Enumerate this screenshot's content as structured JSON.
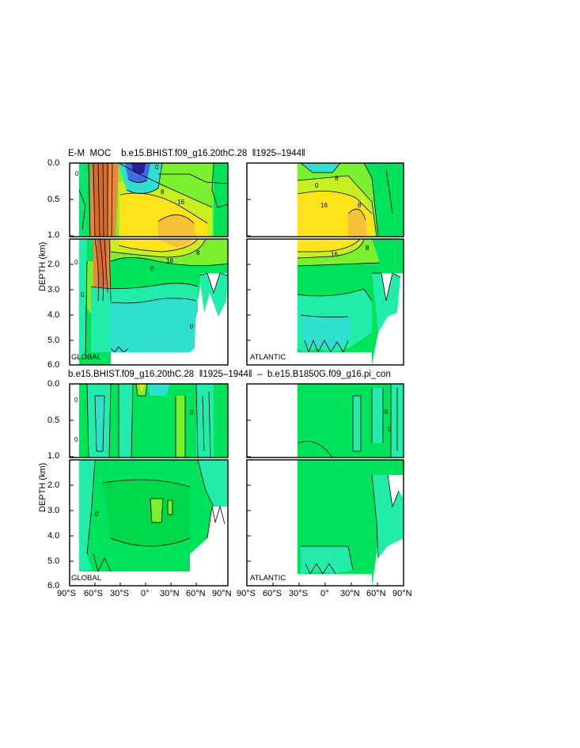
{
  "title_top": "E-M  MOC    b.e15.BHIST.f09_g16.20thC.28  ‖1925–1944‖",
  "title_bottom": "b.e15.BHIST.f09_g16.20thC.28  ‖1925–1944‖  –  b.e15.B1850G.f09_g16.pi_con",
  "ylabel": "DEPTH (km)",
  "region_labels": {
    "global": "GLOBAL",
    "atlantic": "ATLANTIC"
  },
  "colors": {
    "deep_blue": "#2a1f9a",
    "blue": "#3f6de0",
    "cyan": "#2fe0d0",
    "aqua": "#22ecaa",
    "green": "#00e35a",
    "lime": "#7af02e",
    "yellow_green": "#c8f020",
    "yellow": "#ffe41a",
    "gold": "#f6c23a",
    "orange": "#e98a3a",
    "dark_orange": "#d86a2a"
  },
  "chart_data": [
    {
      "name": "top-global",
      "type": "heatmap",
      "region": "GLOBAL",
      "x_ticks": [
        "90°S",
        "60°S",
        "30°S",
        "0°",
        "30°N",
        "60°N",
        "90°N"
      ],
      "x_range": [
        -90,
        90
      ],
      "y_ticks_upper": [
        "0.0",
        "0.5",
        "1.0"
      ],
      "y_ticks_lower": [
        "2.0",
        "3.0",
        "4.0",
        "5.0",
        "6.0"
      ],
      "y_range_km": [
        0,
        6
      ],
      "contour_labels": [
        "0",
        "8",
        "16",
        "0",
        "16",
        "8",
        "0",
        "16",
        "8",
        "0",
        "0",
        "0",
        "0"
      ]
    },
    {
      "name": "top-atlantic",
      "type": "heatmap",
      "region": "ATLANTIC",
      "x_ticks": [
        "90°S",
        "60°S",
        "30°S",
        "0°",
        "30°N",
        "60°N",
        "90°N"
      ],
      "x_range": [
        -90,
        90
      ],
      "y_range_km": [
        0,
        6
      ],
      "contour_labels": [
        "0",
        "8",
        "16",
        "8",
        "16",
        "8",
        "0",
        "0",
        "0"
      ]
    },
    {
      "name": "bottom-global",
      "type": "heatmap",
      "region": "GLOBAL",
      "x_ticks": [
        "90°S",
        "60°S",
        "30°S",
        "0°",
        "30°N",
        "60°N",
        "90°N"
      ],
      "x_range": [
        -90,
        90
      ],
      "y_ticks_upper": [
        "0.0",
        "0.5",
        "1.0"
      ],
      "y_ticks_lower": [
        "2.0",
        "3.0",
        "4.0",
        "5.0",
        "6.0"
      ],
      "y_range_km": [
        0,
        6
      ],
      "contour_labels": [
        "0",
        "0",
        "0",
        "0",
        "0",
        "0",
        "0"
      ]
    },
    {
      "name": "bottom-atlantic",
      "type": "heatmap",
      "region": "ATLANTIC",
      "x_ticks": [
        "90°S",
        "60°S",
        "30°S",
        "0°",
        "30°N",
        "60°N",
        "90°N"
      ],
      "x_range": [
        -90,
        90
      ],
      "y_range_km": [
        0,
        6
      ],
      "contour_labels": [
        "0",
        "0",
        "0",
        "0"
      ]
    }
  ]
}
